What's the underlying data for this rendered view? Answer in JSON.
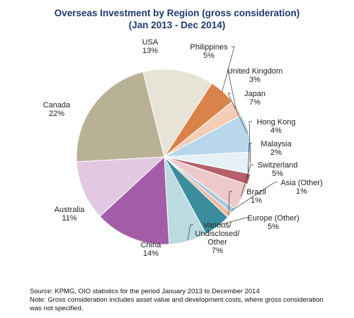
{
  "chart_data": {
    "type": "pie",
    "title": "Overseas Investment by Region (gross consideration)",
    "subtitle": "(Jan 2013 - Dec 2014)",
    "slices": [
      {
        "label": "USA",
        "percent_label": "13%",
        "value": 13,
        "color": "#e7e3d6"
      },
      {
        "label": "Philippines",
        "percent_label": "5%",
        "value": 5,
        "color": "#d9834a"
      },
      {
        "label": "United Kingdom",
        "percent_label": "3%",
        "value": 3,
        "color": "#f3cdb6"
      },
      {
        "label": "Japan",
        "percent_label": "7%",
        "value": 7,
        "color": "#b9d7ea"
      },
      {
        "label": "Hong Kong",
        "percent_label": "4%",
        "value": 4,
        "color": "#e6f0f7"
      },
      {
        "label": "Malaysia",
        "percent_label": "2%",
        "value": 2,
        "color": "#b5606a"
      },
      {
        "label": "Switzerland",
        "percent_label": "5%",
        "value": 5,
        "color": "#eec9cb"
      },
      {
        "label": "Asia (Other)",
        "percent_label": "1%",
        "value": 1,
        "color": "#a6c8e0"
      },
      {
        "label": "Brazil",
        "percent_label": "1%",
        "value": 1,
        "color": "#f1b99a"
      },
      {
        "label": "Europe (Other)",
        "percent_label": "5%",
        "value": 5,
        "color": "#3b8d9d"
      },
      {
        "label": "Various/ Undisclosed/ Other",
        "percent_label": "7%",
        "value": 7,
        "color": "#bcdbe0"
      },
      {
        "label": "China",
        "percent_label": "14%",
        "value": 14,
        "color": "#a45ea8"
      },
      {
        "label": "Australia",
        "percent_label": "11%",
        "value": 11,
        "color": "#e3c8e3"
      },
      {
        "label": "Canada",
        "percent_label": "22%",
        "value": 22,
        "color": "#b9b196"
      }
    ]
  },
  "footer": {
    "source": "Source: KPMG, OIO statistics for the period January 2013 to December 2014",
    "note": "Note: Gross consideration includes asset value and development costs, where gross consideration was not specified."
  }
}
